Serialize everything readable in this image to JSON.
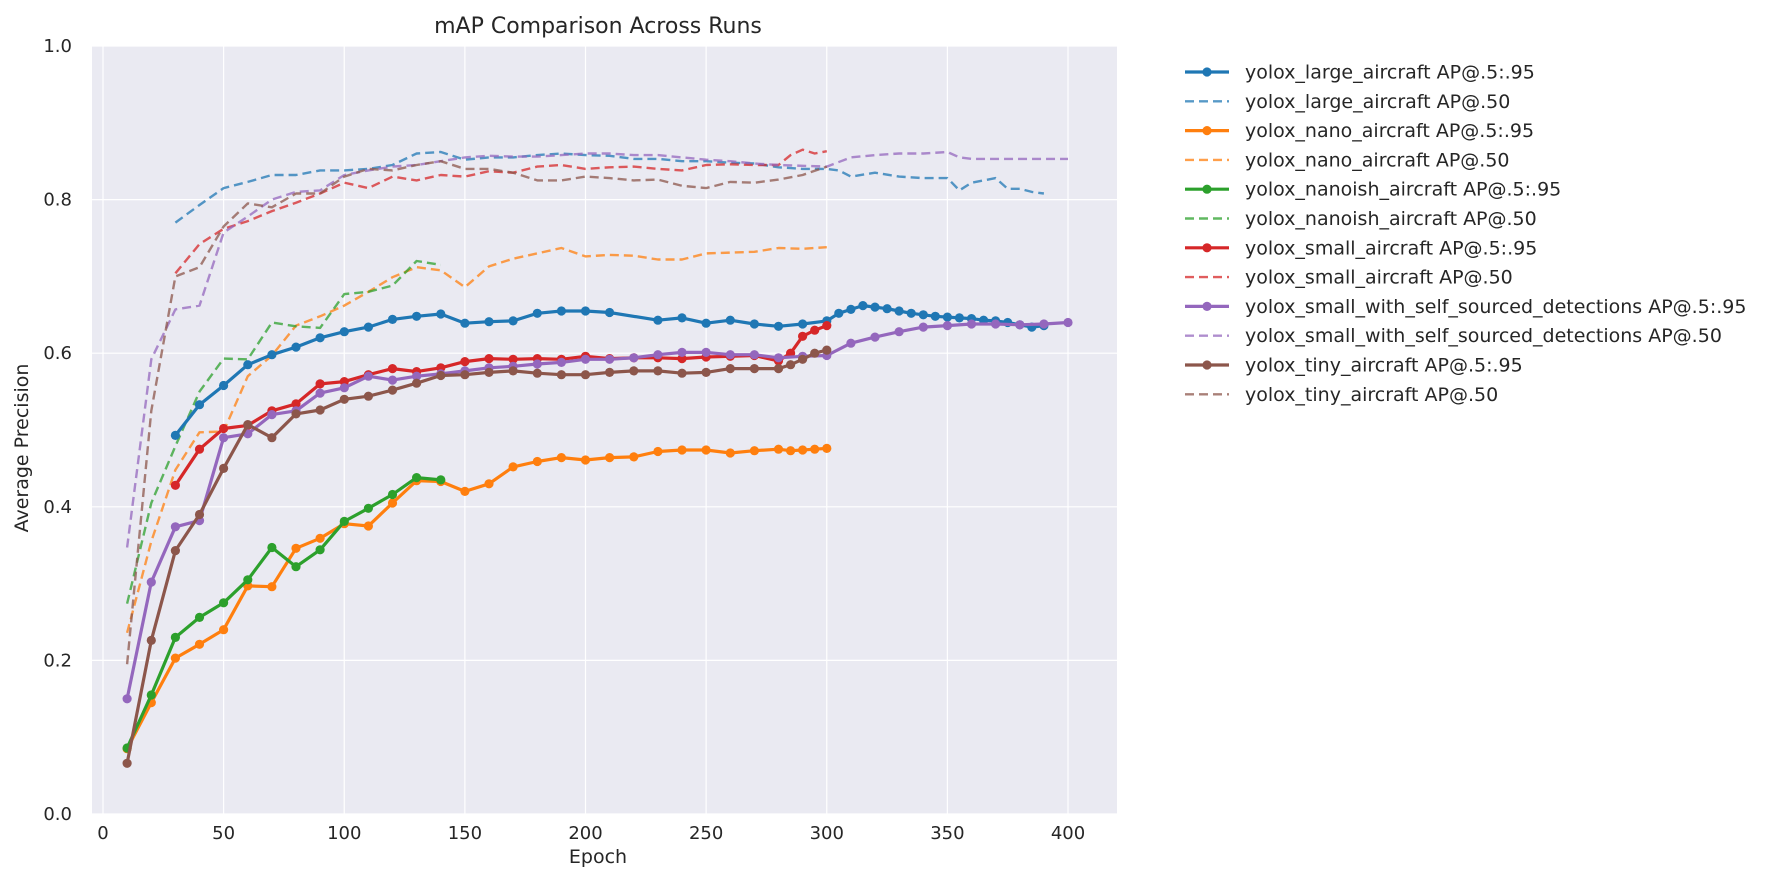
{
  "chart_data": {
    "type": "line",
    "title": "mAP Comparison Across Runs",
    "xlabel": "Epoch",
    "ylabel": "Average Precision",
    "xlim": [
      -5,
      420
    ],
    "ylim": [
      0.0,
      1.0
    ],
    "xticks": [
      0,
      50,
      100,
      150,
      200,
      250,
      300,
      350,
      400
    ],
    "yticks": [
      0.0,
      0.2,
      0.4,
      0.6,
      0.8,
      1.0
    ],
    "grid": true,
    "legend_position": "outside-right-top",
    "series": [
      {
        "name": "yolox_large_aircraft AP@.5:.95",
        "color": "#1f77b4",
        "style": "solid",
        "markers": true,
        "x": [
          30,
          40,
          50,
          60,
          70,
          80,
          90,
          100,
          110,
          120,
          130,
          140,
          150,
          160,
          170,
          180,
          190,
          200,
          210,
          230,
          240,
          250,
          260,
          270,
          280,
          290,
          300,
          305,
          310,
          315,
          320,
          325,
          330,
          335,
          340,
          345,
          350,
          355,
          360,
          365,
          370,
          375,
          380,
          385,
          390
        ],
        "y": [
          0.493,
          0.533,
          0.558,
          0.585,
          0.598,
          0.608,
          0.62,
          0.628,
          0.634,
          0.644,
          0.648,
          0.651,
          0.639,
          0.641,
          0.642,
          0.652,
          0.655,
          0.655,
          0.653,
          0.643,
          0.646,
          0.639,
          0.643,
          0.638,
          0.635,
          0.638,
          0.642,
          0.652,
          0.657,
          0.662,
          0.66,
          0.658,
          0.655,
          0.652,
          0.65,
          0.648,
          0.647,
          0.646,
          0.645,
          0.643,
          0.642,
          0.64,
          0.637,
          0.634,
          0.636
        ]
      },
      {
        "name": "yolox_large_aircraft AP@.50",
        "color": "#1f77b4",
        "style": "dashed",
        "markers": false,
        "x": [
          30,
          40,
          50,
          60,
          70,
          80,
          90,
          100,
          110,
          120,
          130,
          140,
          150,
          160,
          170,
          180,
          190,
          200,
          210,
          220,
          230,
          240,
          250,
          260,
          270,
          280,
          290,
          300,
          305,
          310,
          320,
          330,
          340,
          350,
          355,
          360,
          370,
          375,
          380,
          385,
          390
        ],
        "y": [
          0.77,
          0.793,
          0.815,
          0.823,
          0.832,
          0.832,
          0.838,
          0.838,
          0.84,
          0.845,
          0.86,
          0.862,
          0.852,
          0.855,
          0.855,
          0.858,
          0.86,
          0.858,
          0.857,
          0.853,
          0.853,
          0.85,
          0.85,
          0.848,
          0.847,
          0.842,
          0.84,
          0.84,
          0.838,
          0.83,
          0.835,
          0.83,
          0.828,
          0.828,
          0.812,
          0.822,
          0.828,
          0.814,
          0.814,
          0.81,
          0.808
        ]
      },
      {
        "name": "yolox_nano_aircraft AP@.5:.95",
        "color": "#ff7f0e",
        "style": "solid",
        "markers": true,
        "x": [
          10,
          20,
          30,
          40,
          50,
          60,
          70,
          80,
          90,
          100,
          110,
          120,
          130,
          140,
          150,
          160,
          170,
          180,
          190,
          200,
          210,
          220,
          230,
          240,
          250,
          260,
          270,
          280,
          285,
          290,
          295,
          300
        ],
        "y": [
          0.085,
          0.145,
          0.203,
          0.221,
          0.24,
          0.297,
          0.296,
          0.346,
          0.359,
          0.378,
          0.375,
          0.405,
          0.434,
          0.433,
          0.42,
          0.43,
          0.452,
          0.459,
          0.464,
          0.461,
          0.464,
          0.465,
          0.472,
          0.474,
          0.474,
          0.47,
          0.473,
          0.475,
          0.473,
          0.474,
          0.475,
          0.476
        ]
      },
      {
        "name": "yolox_nano_aircraft AP@.50",
        "color": "#ff7f0e",
        "style": "dashed",
        "markers": false,
        "x": [
          10,
          20,
          30,
          40,
          50,
          60,
          70,
          80,
          90,
          100,
          110,
          120,
          130,
          140,
          150,
          160,
          170,
          180,
          190,
          200,
          210,
          220,
          230,
          240,
          250,
          260,
          270,
          280,
          290,
          300
        ],
        "y": [
          0.236,
          0.355,
          0.448,
          0.497,
          0.498,
          0.57,
          0.597,
          0.636,
          0.648,
          0.662,
          0.68,
          0.699,
          0.712,
          0.708,
          0.686,
          0.713,
          0.723,
          0.73,
          0.737,
          0.726,
          0.728,
          0.727,
          0.722,
          0.722,
          0.73,
          0.731,
          0.732,
          0.737,
          0.736,
          0.738
        ]
      },
      {
        "name": "yolox_nanoish_aircraft AP@.5:.95",
        "color": "#2ca02c",
        "style": "solid",
        "markers": true,
        "x": [
          10,
          20,
          30,
          40,
          50,
          60,
          70,
          80,
          90,
          100,
          110,
          120,
          130,
          140
        ],
        "y": [
          0.086,
          0.155,
          0.23,
          0.256,
          0.275,
          0.305,
          0.347,
          0.322,
          0.344,
          0.381,
          0.398,
          0.416,
          0.438,
          0.435
        ]
      },
      {
        "name": "yolox_nanoish_aircraft AP@.50",
        "color": "#2ca02c",
        "style": "dashed",
        "markers": false,
        "x": [
          10,
          20,
          30,
          40,
          50,
          60,
          70,
          80,
          90,
          100,
          110,
          120,
          130,
          140
        ],
        "y": [
          0.274,
          0.405,
          0.479,
          0.55,
          0.593,
          0.592,
          0.64,
          0.635,
          0.633,
          0.677,
          0.68,
          0.688,
          0.72,
          0.715
        ]
      },
      {
        "name": "yolox_small_aircraft AP@.5:.95",
        "color": "#d62728",
        "style": "solid",
        "markers": true,
        "x": [
          30,
          40,
          50,
          60,
          70,
          80,
          90,
          100,
          110,
          120,
          130,
          140,
          150,
          160,
          170,
          180,
          190,
          200,
          210,
          220,
          230,
          240,
          250,
          260,
          270,
          280,
          285,
          290,
          295,
          300
        ],
        "y": [
          0.428,
          0.475,
          0.502,
          0.506,
          0.525,
          0.534,
          0.56,
          0.563,
          0.572,
          0.58,
          0.576,
          0.581,
          0.589,
          0.593,
          0.592,
          0.593,
          0.592,
          0.596,
          0.593,
          0.594,
          0.594,
          0.593,
          0.595,
          0.596,
          0.597,
          0.59,
          0.6,
          0.622,
          0.63,
          0.636
        ]
      },
      {
        "name": "yolox_small_aircraft AP@.50",
        "color": "#d62728",
        "style": "dashed",
        "markers": false,
        "x": [
          30,
          40,
          50,
          60,
          70,
          80,
          90,
          100,
          110,
          120,
          130,
          140,
          150,
          160,
          170,
          180,
          190,
          200,
          210,
          220,
          230,
          240,
          250,
          260,
          270,
          280,
          285,
          290,
          295,
          300
        ],
        "y": [
          0.704,
          0.742,
          0.762,
          0.772,
          0.785,
          0.796,
          0.808,
          0.822,
          0.815,
          0.83,
          0.825,
          0.832,
          0.83,
          0.837,
          0.835,
          0.843,
          0.845,
          0.84,
          0.842,
          0.843,
          0.84,
          0.838,
          0.845,
          0.846,
          0.845,
          0.845,
          0.858,
          0.865,
          0.86,
          0.863
        ]
      },
      {
        "name": "yolox_small_with_self_sourced_detections AP@.5:.95",
        "color": "#9467bd",
        "style": "solid",
        "markers": true,
        "x": [
          10,
          20,
          30,
          40,
          50,
          60,
          70,
          80,
          90,
          100,
          110,
          120,
          130,
          140,
          150,
          160,
          170,
          180,
          190,
          200,
          210,
          220,
          230,
          240,
          250,
          260,
          270,
          280,
          290,
          300,
          310,
          320,
          330,
          340,
          350,
          360,
          370,
          380,
          390,
          400
        ],
        "y": [
          0.15,
          0.302,
          0.374,
          0.382,
          0.49,
          0.495,
          0.52,
          0.525,
          0.548,
          0.555,
          0.57,
          0.565,
          0.57,
          0.573,
          0.577,
          0.581,
          0.583,
          0.586,
          0.588,
          0.592,
          0.592,
          0.594,
          0.598,
          0.601,
          0.601,
          0.598,
          0.598,
          0.594,
          0.596,
          0.597,
          0.613,
          0.621,
          0.628,
          0.634,
          0.636,
          0.638,
          0.638,
          0.637,
          0.638,
          0.64
        ]
      },
      {
        "name": "yolox_small_with_self_sourced_detections AP@.50",
        "color": "#9467bd",
        "style": "dashed",
        "markers": false,
        "x": [
          10,
          20,
          30,
          40,
          50,
          60,
          70,
          80,
          90,
          100,
          110,
          120,
          130,
          140,
          150,
          160,
          170,
          180,
          190,
          200,
          210,
          220,
          230,
          240,
          250,
          260,
          270,
          280,
          290,
          300,
          310,
          320,
          330,
          340,
          350,
          355,
          360,
          370,
          380,
          390,
          400
        ],
        "y": [
          0.347,
          0.592,
          0.657,
          0.662,
          0.757,
          0.778,
          0.8,
          0.81,
          0.812,
          0.832,
          0.838,
          0.843,
          0.845,
          0.85,
          0.855,
          0.857,
          0.856,
          0.856,
          0.858,
          0.86,
          0.86,
          0.858,
          0.858,
          0.855,
          0.852,
          0.85,
          0.847,
          0.845,
          0.844,
          0.843,
          0.855,
          0.858,
          0.86,
          0.86,
          0.862,
          0.855,
          0.853,
          0.853,
          0.853,
          0.853,
          0.853
        ]
      },
      {
        "name": "yolox_tiny_aircraft AP@.5:.95",
        "color": "#8c564b",
        "style": "solid",
        "markers": true,
        "x": [
          10,
          20,
          30,
          40,
          50,
          60,
          70,
          80,
          90,
          100,
          110,
          120,
          130,
          140,
          150,
          160,
          170,
          180,
          190,
          200,
          210,
          220,
          230,
          240,
          250,
          260,
          270,
          280,
          285,
          290,
          295,
          300
        ],
        "y": [
          0.066,
          0.226,
          0.343,
          0.39,
          0.45,
          0.507,
          0.49,
          0.521,
          0.526,
          0.54,
          0.544,
          0.552,
          0.561,
          0.571,
          0.572,
          0.575,
          0.577,
          0.574,
          0.572,
          0.572,
          0.575,
          0.577,
          0.577,
          0.574,
          0.575,
          0.58,
          0.58,
          0.58,
          0.585,
          0.592,
          0.6,
          0.604
        ]
      },
      {
        "name": "yolox_tiny_aircraft AP@.50",
        "color": "#8c564b",
        "style": "dashed",
        "markers": false,
        "x": [
          10,
          20,
          30,
          40,
          50,
          60,
          70,
          80,
          90,
          100,
          110,
          120,
          130,
          140,
          150,
          160,
          170,
          180,
          190,
          200,
          210,
          220,
          230,
          240,
          250,
          260,
          270,
          280,
          290,
          300
        ],
        "y": [
          0.195,
          0.525,
          0.7,
          0.712,
          0.765,
          0.795,
          0.79,
          0.808,
          0.808,
          0.83,
          0.84,
          0.838,
          0.845,
          0.85,
          0.84,
          0.84,
          0.835,
          0.825,
          0.825,
          0.83,
          0.828,
          0.825,
          0.826,
          0.818,
          0.815,
          0.823,
          0.822,
          0.826,
          0.832,
          0.843
        ]
      }
    ]
  }
}
